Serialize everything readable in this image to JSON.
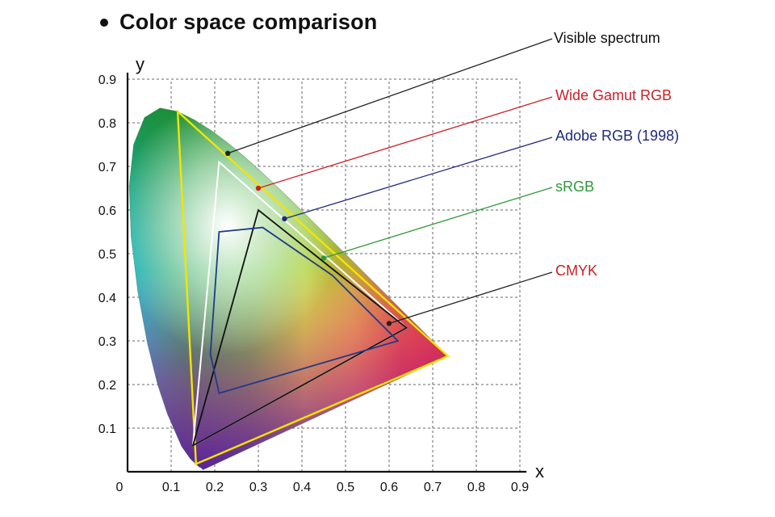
{
  "title": "Color space comparison",
  "chart_data": {
    "type": "scatter",
    "title": "Color space comparison",
    "xlabel": "x",
    "ylabel": "y",
    "xlim": [
      0,
      0.9
    ],
    "ylim": [
      0,
      0.9
    ],
    "x_ticks": [
      "0",
      "0.1",
      "0.2",
      "0.3",
      "0.4",
      "0.5",
      "0.6",
      "0.7",
      "0.8",
      "0.9"
    ],
    "y_ticks": [
      "0.1",
      "0.2",
      "0.3",
      "0.4",
      "0.5",
      "0.6",
      "0.7",
      "0.8",
      "0.9"
    ],
    "grid": true,
    "legend_position": "right",
    "series": [
      {
        "name": "Visible spectrum",
        "color": "#222222",
        "kind": "spectral locus",
        "points": [
          [
            0.1741,
            0.005
          ],
          [
            0.1733,
            0.0048
          ],
          [
            0.172,
            0.0048
          ],
          [
            0.1699,
            0.0086
          ],
          [
            0.1644,
            0.0109
          ],
          [
            0.1566,
            0.0177
          ],
          [
            0.144,
            0.0297
          ],
          [
            0.1241,
            0.0578
          ],
          [
            0.0913,
            0.1327
          ],
          [
            0.0687,
            0.2007
          ],
          [
            0.0454,
            0.295
          ],
          [
            0.0235,
            0.4127
          ],
          [
            0.0082,
            0.5384
          ],
          [
            0.0039,
            0.6548
          ],
          [
            0.0139,
            0.7502
          ],
          [
            0.0389,
            0.812
          ],
          [
            0.0743,
            0.8338
          ],
          [
            0.1142,
            0.8262
          ],
          [
            0.1547,
            0.8059
          ],
          [
            0.1929,
            0.7816
          ],
          [
            0.2296,
            0.7543
          ],
          [
            0.2658,
            0.7243
          ],
          [
            0.3016,
            0.6923
          ],
          [
            0.3373,
            0.6589
          ],
          [
            0.3731,
            0.6245
          ],
          [
            0.4087,
            0.5896
          ],
          [
            0.4441,
            0.5547
          ],
          [
            0.4788,
            0.5202
          ],
          [
            0.5125,
            0.4866
          ],
          [
            0.5448,
            0.4544
          ],
          [
            0.5752,
            0.4242
          ],
          [
            0.6029,
            0.3965
          ],
          [
            0.627,
            0.3725
          ],
          [
            0.6482,
            0.3514
          ],
          [
            0.6658,
            0.334
          ],
          [
            0.6801,
            0.3197
          ],
          [
            0.6915,
            0.3083
          ],
          [
            0.7006,
            0.2993
          ],
          [
            0.7079,
            0.292
          ],
          [
            0.714,
            0.2859
          ],
          [
            0.719,
            0.2809
          ],
          [
            0.723,
            0.277
          ],
          [
            0.726,
            0.274
          ],
          [
            0.7283,
            0.2717
          ],
          [
            0.73,
            0.27
          ],
          [
            0.7347,
            0.2653
          ]
        ],
        "marker": [
          0.23,
          0.73
        ]
      },
      {
        "name": "Wide Gamut RGB",
        "color": "#cc1f26",
        "kind": "gamut triangle",
        "points": [
          [
            0.735,
            0.265
          ],
          [
            0.115,
            0.826
          ],
          [
            0.157,
            0.018
          ]
        ],
        "marker": [
          0.3,
          0.65
        ]
      },
      {
        "name": "Adobe RGB (1998)",
        "color": "#1f2a7a",
        "kind": "gamut triangle",
        "points": [
          [
            0.64,
            0.33
          ],
          [
            0.21,
            0.71
          ],
          [
            0.15,
            0.06
          ]
        ],
        "marker": [
          0.36,
          0.58
        ]
      },
      {
        "name": "sRGB",
        "color": "#2f9a3a",
        "kind": "gamut triangle",
        "points": [
          [
            0.64,
            0.33
          ],
          [
            0.3,
            0.6
          ],
          [
            0.15,
            0.06
          ]
        ],
        "marker": [
          0.45,
          0.49
        ]
      },
      {
        "name": "CMYK",
        "color": "#cc1f26",
        "kind": "gamut polygon",
        "points": [
          [
            0.21,
            0.55
          ],
          [
            0.31,
            0.56
          ],
          [
            0.47,
            0.45
          ],
          [
            0.62,
            0.3
          ],
          [
            0.21,
            0.18
          ],
          [
            0.19,
            0.27
          ]
        ],
        "marker": [
          0.6,
          0.34
        ]
      }
    ]
  }
}
